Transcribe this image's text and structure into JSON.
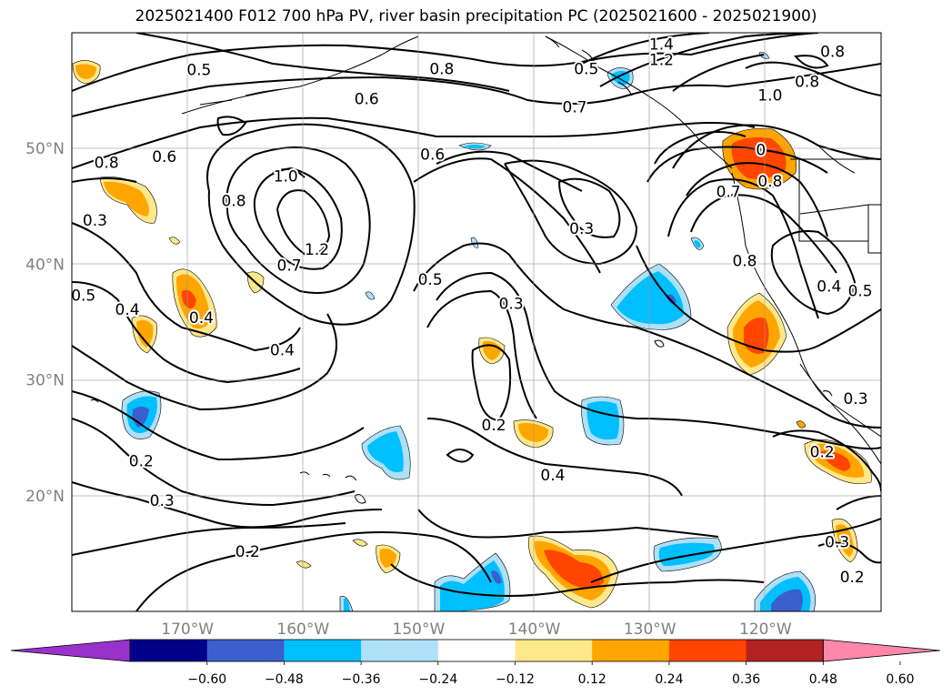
{
  "title": "2025021400 F012 700 hPa PV, river basin precipitation PC (2025021600 - 2025021900)",
  "map": {
    "lon_range": [
      -180,
      -110
    ],
    "lat_range": [
      10,
      60
    ],
    "lon_ticks": [
      {
        "lon": -170,
        "label": "170°W"
      },
      {
        "lon": -160,
        "label": "160°W"
      },
      {
        "lon": -150,
        "label": "150°W"
      },
      {
        "lon": -140,
        "label": "140°W"
      },
      {
        "lon": -130,
        "label": "130°W"
      },
      {
        "lon": -120,
        "label": "120°W"
      }
    ],
    "lat_ticks": [
      {
        "lat": 50,
        "label": "50°N"
      },
      {
        "lat": 40,
        "label": "40°N"
      },
      {
        "lat": 30,
        "label": "30°N"
      },
      {
        "lat": 20,
        "label": "20°N"
      }
    ],
    "contour_labels": [
      {
        "text": "0.5",
        "lon": -169,
        "lat": 56.8
      },
      {
        "text": "0.6",
        "lon": -154.5,
        "lat": 54.3
      },
      {
        "text": "0.8",
        "lon": -148,
        "lat": 56.9
      },
      {
        "text": "0.5",
        "lon": -135.5,
        "lat": 56.9
      },
      {
        "text": "0.7",
        "lon": -136.5,
        "lat": 53.6
      },
      {
        "text": "1.4",
        "lon": -129,
        "lat": 59.0
      },
      {
        "text": "1.2",
        "lon": -129,
        "lat": 57.7
      },
      {
        "text": "0.8",
        "lon": -114.2,
        "lat": 58.4
      },
      {
        "text": "0.8",
        "lon": -116.4,
        "lat": 55.8
      },
      {
        "text": "1.0",
        "lon": -119.6,
        "lat": 54.6
      },
      {
        "text": "0.6",
        "lon": -172,
        "lat": 49.3
      },
      {
        "text": "0.6",
        "lon": -148.8,
        "lat": 49.5
      },
      {
        "text": "1.0",
        "lon": -161.5,
        "lat": 47.6
      },
      {
        "text": "0.8",
        "lon": -177,
        "lat": 48.8
      },
      {
        "text": "0.8",
        "lon": -166,
        "lat": 45.5
      },
      {
        "text": "1.2",
        "lon": -158.8,
        "lat": 41.3
      },
      {
        "text": "0.7",
        "lon": -161.2,
        "lat": 39.9
      },
      {
        "text": "0.3",
        "lon": -178,
        "lat": 43.8
      },
      {
        "text": "0.5",
        "lon": -179,
        "lat": 37.3
      },
      {
        "text": "0.4",
        "lon": -175.2,
        "lat": 36.1
      },
      {
        "text": "0.4",
        "lon": -168.8,
        "lat": 35.4
      },
      {
        "text": "0.4",
        "lon": -161.8,
        "lat": 32.6
      },
      {
        "text": "0.5",
        "lon": -149,
        "lat": 38.7
      },
      {
        "text": "0.3",
        "lon": -142,
        "lat": 36.6
      },
      {
        "text": "0.3",
        "lon": -135.9,
        "lat": 43.1
      },
      {
        "text": "0.7",
        "lon": -123.2,
        "lat": 46.3
      },
      {
        "text": "0.8",
        "lon": -121.8,
        "lat": 40.3
      },
      {
        "text": "0.8",
        "lon": -119.6,
        "lat": 47.2
      },
      {
        "text": "0",
        "lon": -120.4,
        "lat": 49.9
      },
      {
        "text": "0.4",
        "lon": -114.5,
        "lat": 38.1
      },
      {
        "text": "0.5",
        "lon": -111.8,
        "lat": 37.7
      },
      {
        "text": "0.2",
        "lon": -143.5,
        "lat": 26.1
      },
      {
        "text": "0.4",
        "lon": -138.4,
        "lat": 21.8
      },
      {
        "text": "0.2",
        "lon": -174,
        "lat": 23.0
      },
      {
        "text": "0.3",
        "lon": -172.2,
        "lat": 19.6
      },
      {
        "text": "0.2",
        "lon": -164.8,
        "lat": 15.2
      },
      {
        "text": "0.3",
        "lon": -112.2,
        "lat": 28.4
      },
      {
        "text": "0.2",
        "lon": -115.1,
        "lat": 23.8
      },
      {
        "text": "0.3",
        "lon": -113.8,
        "lat": 16.0
      },
      {
        "text": "0.2",
        "lon": -112.5,
        "lat": 13.0
      }
    ]
  },
  "colorbar": {
    "ticks": [
      "−0.60",
      "−0.48",
      "−0.36",
      "−0.24",
      "−0.12",
      "0.12",
      "0.24",
      "0.36",
      "0.48",
      "0.60"
    ],
    "colors": [
      "#9932cc",
      "#00008b",
      "#3a5fcd",
      "#00bfff",
      "#aee0f8",
      "#ffffff",
      "#ffe88a",
      "#ffa500",
      "#ff4500",
      "#b22222",
      "#ff88aa"
    ]
  }
}
